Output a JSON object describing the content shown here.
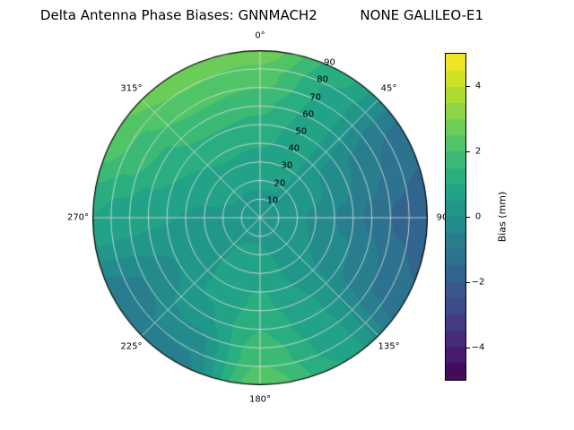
{
  "title": "Delta Antenna Phase Biases: GNNMACH2          NONE GALILEO-E1",
  "chart_data": {
    "type": "heatmap",
    "projection": "polar",
    "title": "Delta Antenna Phase Biases: GNNMACH2          NONE GALILEO-E1",
    "theta_zero": "top",
    "theta_direction": "clockwise",
    "azimuth_deg": [
      0,
      30,
      60,
      90,
      120,
      150,
      180,
      210,
      240,
      270,
      300,
      330,
      360
    ],
    "zenith_deg": [
      0,
      15,
      30,
      45,
      60,
      75,
      90
    ],
    "values": [
      [
        0.4,
        0.4,
        0.4,
        0.4,
        0.4,
        0.4,
        0.4,
        0.4,
        0.4,
        0.4,
        0.4,
        0.4,
        0.4
      ],
      [
        0.5,
        0.5,
        0.4,
        0.3,
        0.3,
        0.4,
        0.5,
        0.5,
        0.4,
        0.4,
        0.5,
        0.5,
        0.5
      ],
      [
        0.8,
        0.6,
        0.2,
        -0.1,
        0.0,
        0.4,
        0.8,
        0.6,
        0.3,
        0.4,
        0.7,
        0.9,
        0.8
      ],
      [
        1.2,
        0.7,
        -0.2,
        -0.6,
        -0.3,
        0.5,
        1.1,
        0.6,
        0.1,
        0.5,
        1.0,
        1.3,
        1.2
      ],
      [
        1.6,
        0.8,
        -0.6,
        -1.1,
        -0.7,
        0.6,
        1.5,
        0.4,
        -0.2,
        0.6,
        1.4,
        1.8,
        1.6
      ],
      [
        2.2,
        0.9,
        -1.0,
        -1.6,
        -1.1,
        0.8,
        1.9,
        -0.3,
        -0.6,
        0.8,
        1.9,
        2.4,
        2.2
      ],
      [
        2.8,
        1.2,
        -1.2,
        -2.0,
        -1.4,
        1.0,
        2.4,
        -0.8,
        -0.9,
        1.0,
        2.4,
        3.0,
        2.8
      ]
    ],
    "level_step": 0.5,
    "angular_tick_labels": [
      {
        "angle_deg": 0,
        "label": "0°"
      },
      {
        "angle_deg": 45,
        "label": "45°"
      },
      {
        "angle_deg": 90,
        "label": "90"
      },
      {
        "angle_deg": 135,
        "label": "135°"
      },
      {
        "angle_deg": 180,
        "label": "180°"
      },
      {
        "angle_deg": 225,
        "label": "225°"
      },
      {
        "angle_deg": 270,
        "label": "270°"
      },
      {
        "angle_deg": 315,
        "label": "315°"
      }
    ],
    "radial_tick_labels": [
      "10",
      "20",
      "30",
      "40",
      "50",
      "60",
      "70",
      "80",
      "90"
    ],
    "radial_tick_values": [
      10,
      20,
      30,
      40,
      50,
      60,
      70,
      80,
      90
    ],
    "radial_label_angle_deg": 22.5,
    "radial_max": 90,
    "grid_color": "#e2e2e2",
    "outline_color": "#000000",
    "colorbar": {
      "label": "Bias (mm)",
      "vmin": -5,
      "vmax": 5,
      "ticks": [
        {
          "value": 4,
          "label": "4"
        },
        {
          "value": 2,
          "label": "2"
        },
        {
          "value": 0,
          "label": "0"
        },
        {
          "value": -2,
          "label": "−2"
        },
        {
          "value": -4,
          "label": "−4"
        }
      ]
    },
    "colormap": {
      "name": "viridis",
      "stops": [
        [
          0.0,
          "#440154"
        ],
        [
          0.1,
          "#482475"
        ],
        [
          0.2,
          "#414487"
        ],
        [
          0.3,
          "#355f8d"
        ],
        [
          0.4,
          "#2a788e"
        ],
        [
          0.5,
          "#21918c"
        ],
        [
          0.6,
          "#22a884"
        ],
        [
          0.7,
          "#44bf70"
        ],
        [
          0.8,
          "#7ad151"
        ],
        [
          0.9,
          "#bddf26"
        ],
        [
          1.0,
          "#fde725"
        ]
      ]
    }
  }
}
